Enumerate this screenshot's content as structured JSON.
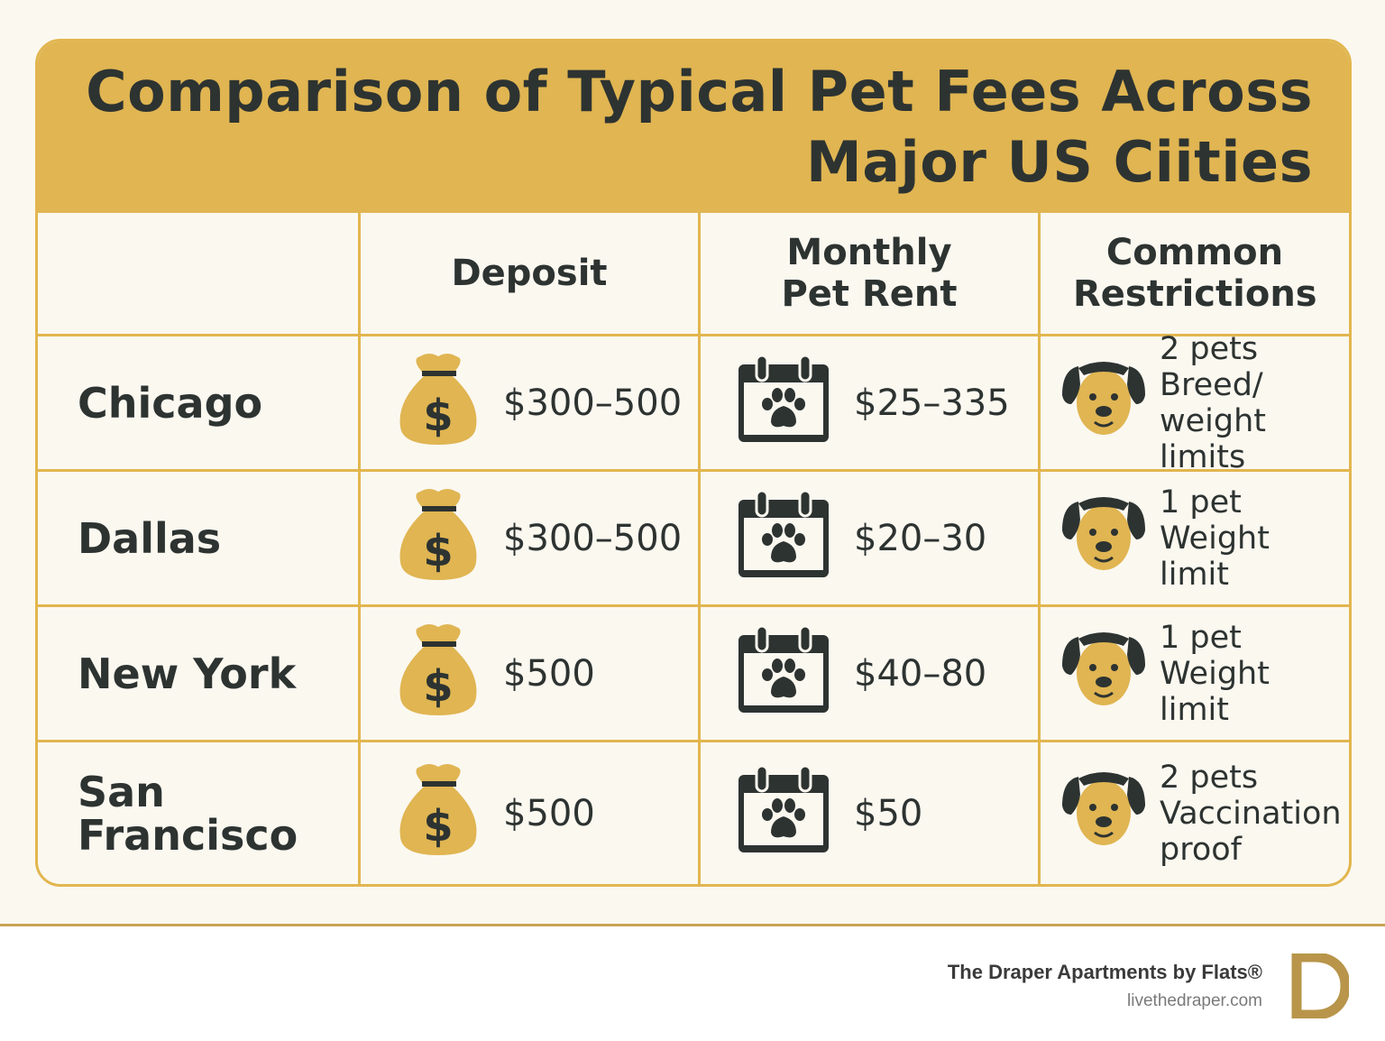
{
  "title": {
    "line1": "Comparison of Typical Pet Fees Across",
    "line2": "Major US Ciities"
  },
  "headers": [
    "",
    "Deposit",
    "Monthly Pet Rent",
    "Common Restrictions"
  ],
  "rows": [
    {
      "city": "Chicago",
      "deposit": "$300–500",
      "rent": "$25–335",
      "restrictions": [
        "2 pets",
        "Breed/",
        "weight limits"
      ]
    },
    {
      "city": "Dallas",
      "deposit": "$300–500",
      "rent": "$20–30",
      "restrictions": [
        "1 pet",
        "Weight",
        "limit"
      ]
    },
    {
      "city": "New York",
      "deposit": "$500",
      "rent": "$40–80",
      "restrictions": [
        "1 pet",
        "Weight",
        "limit"
      ]
    },
    {
      "city": "San Francisco",
      "deposit": "$500",
      "rent": "$50",
      "restrictions": [
        "2 pets",
        "Vaccination",
        "proof"
      ]
    }
  ],
  "icons": {
    "deposit": "money-bag-icon",
    "rent": "calendar-paw-icon",
    "restrictions": "dog-face-icon"
  },
  "colors": {
    "accent": "#e0b552",
    "text": "#2d3331",
    "background": "#fbf8f0",
    "logo": "#b8954a"
  },
  "footer": {
    "brand": "The Draper Apartments by Flats®",
    "url": "livethedraper.com",
    "logo_letter": "D"
  }
}
